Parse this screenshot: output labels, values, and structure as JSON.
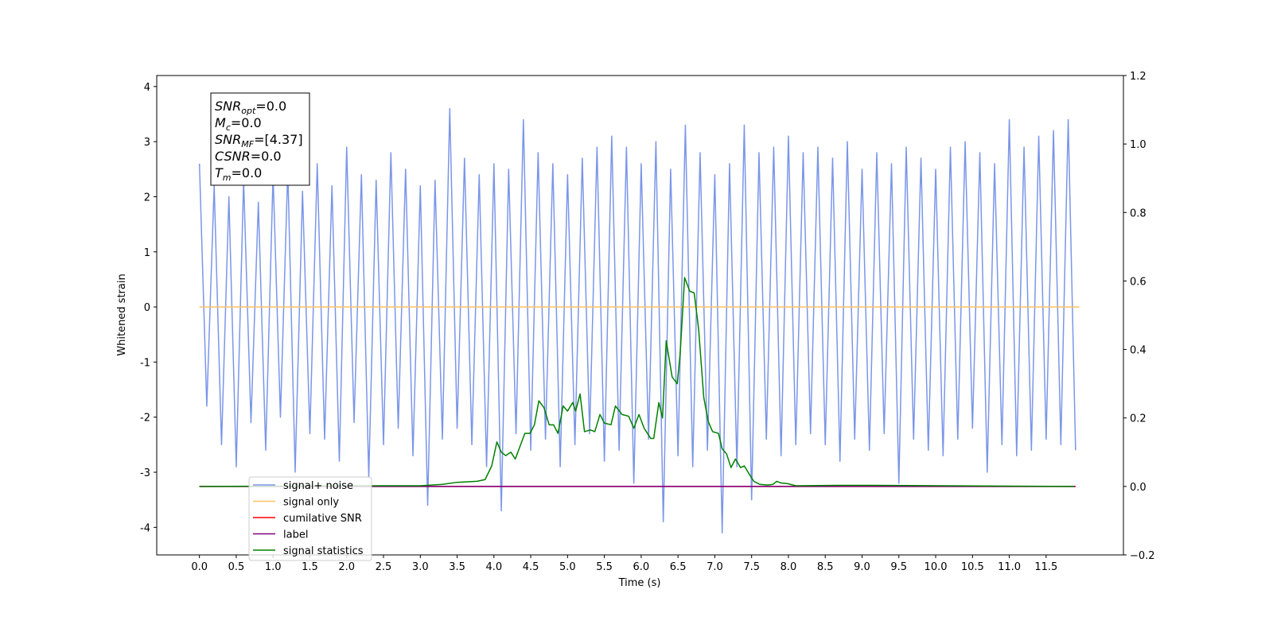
{
  "chart_data": {
    "type": "line",
    "xlabel": "Time (s)",
    "ylabel": "Whitened strain",
    "xlim": [
      -0.58,
      12.55
    ],
    "ylim": [
      -4.5,
      4.2
    ],
    "y2lim": [
      -0.2,
      1.2
    ],
    "xticks": [
      {
        "value": 0,
        "label": "0.0"
      },
      0.5,
      {
        "value": 1,
        "label": "1.0"
      },
      1.5,
      {
        "value": 2,
        "label": "2.0"
      },
      2.5,
      {
        "value": 3,
        "label": "3.0"
      },
      3.5,
      {
        "value": 4,
        "label": "4.0"
      },
      4.5,
      {
        "value": 5,
        "label": "5.0"
      },
      5.5,
      {
        "value": 6,
        "label": "6.0"
      },
      6.5,
      {
        "value": 7,
        "label": "7.0"
      },
      7.5,
      {
        "value": 8,
        "label": "8.0"
      },
      8.5,
      {
        "value": 9,
        "label": "9.0"
      },
      9.5,
      {
        "value": 10,
        "label": "10.0"
      },
      10.5,
      {
        "value": 11,
        "label": "11.0"
      },
      11.5
    ],
    "yticks": [
      -4,
      -3,
      -2,
      -1,
      0,
      1,
      2,
      3,
      4
    ],
    "y2ticks": [
      {
        "value": -0.2,
        "label": "−0.2"
      },
      {
        "value": 0,
        "label": "0.0"
      },
      0.2,
      0.4,
      0.6,
      0.8,
      {
        "value": 1,
        "label": "1.0"
      },
      1.2
    ],
    "legend_loc": "lower left",
    "annotations": [
      {
        "name": "SNR",
        "sub": "opt",
        "text": "=0.0"
      },
      {
        "name": "M",
        "sub": "c",
        "text": "=0.0"
      },
      {
        "name": "SNR",
        "sub": "MF",
        "text": "=[4.37]"
      },
      {
        "name": "CSNR",
        "sub": null,
        "text": "=0.0"
      },
      {
        "name": "T",
        "sub": "m",
        "text": "=0.0"
      }
    ],
    "series": [
      {
        "name": "signal+ noise",
        "color": "#7b96e8",
        "x": [
          0,
          0.1,
          0.2,
          0.3,
          0.4,
          0.5,
          0.6,
          0.7,
          0.8,
          0.9,
          1,
          1.1,
          1.2,
          1.3,
          1.4,
          1.5,
          1.6,
          1.7,
          1.8,
          1.9,
          2,
          2.1,
          2.2,
          2.3,
          2.4,
          2.5,
          2.6,
          2.7,
          2.8,
          2.9,
          3,
          3.1,
          3.2,
          3.3,
          3.4,
          3.5,
          3.6,
          3.7,
          3.8,
          3.9,
          4,
          4.1,
          4.2,
          4.3,
          4.4,
          4.5,
          4.6,
          4.7,
          4.8,
          4.9,
          5,
          5.1,
          5.2,
          5.3,
          5.4,
          5.5,
          5.6,
          5.7,
          5.8,
          5.9,
          6,
          6.1,
          6.2,
          6.3,
          6.4,
          6.5,
          6.6,
          6.7,
          6.8,
          6.9,
          7,
          7.1,
          7.2,
          7.3,
          7.4,
          7.5,
          7.6,
          7.7,
          7.8,
          7.9,
          8,
          8.1,
          8.2,
          8.3,
          8.4,
          8.5,
          8.6,
          8.7,
          8.8,
          8.9,
          9,
          9.1,
          9.2,
          9.3,
          9.4,
          9.5,
          9.6,
          9.7,
          9.8,
          9.9,
          10,
          10.1,
          10.2,
          10.3,
          10.4,
          10.5,
          10.6,
          10.7,
          10.8,
          10.9,
          11,
          11.1,
          11.2,
          11.3,
          11.4,
          11.5,
          11.6,
          11.7,
          11.8,
          11.9
        ],
        "values": [
          2.6,
          -1.8,
          2.2,
          -2.5,
          2.0,
          -2.9,
          2.3,
          -2.1,
          1.9,
          -2.6,
          2.4,
          -2.0,
          2.5,
          -3.0,
          2.1,
          -2.3,
          2.6,
          -2.4,
          2.2,
          -2.8,
          2.9,
          -2.1,
          2.4,
          -3.1,
          2.3,
          -2.5,
          2.8,
          -2.2,
          2.5,
          -2.7,
          2.2,
          -3.6,
          2.3,
          -2.4,
          3.6,
          -2.2,
          2.7,
          -2.5,
          2.4,
          -2.9,
          2.6,
          -3.7,
          2.5,
          -2.3,
          3.4,
          -2.6,
          2.8,
          -2.4,
          2.6,
          -2.9,
          2.4,
          -2.5,
          2.7,
          -2.3,
          2.9,
          -2.8,
          3.1,
          -2.6,
          2.9,
          -3.2,
          2.6,
          -2.4,
          3.0,
          -3.9,
          2.5,
          -2.7,
          3.3,
          -2.9,
          2.8,
          -2.6,
          2.4,
          -4.1,
          2.6,
          -2.9,
          3.3,
          -3.5,
          2.8,
          -2.4,
          2.9,
          -2.7,
          3.1,
          -2.5,
          2.8,
          -2.3,
          2.9,
          -2.5,
          2.7,
          -2.8,
          3.0,
          -2.4,
          2.5,
          -2.6,
          2.8,
          -2.3,
          2.6,
          -3.2,
          2.9,
          -2.4,
          2.7,
          -2.6,
          2.5,
          -2.7,
          2.9,
          -2.4,
          3.0,
          -2.2,
          2.8,
          -3.0,
          2.6,
          -2.5,
          3.4,
          -2.7,
          2.9,
          -2.6,
          3.1,
          -2.4,
          3.2,
          -2.5,
          3.4,
          -2.6
        ]
      },
      {
        "name": "signal only",
        "color": "#ffbf66",
        "x": [
          0,
          11.95
        ],
        "values": [
          0,
          0
        ]
      },
      {
        "name": "cumilative SNR",
        "color": "#ff0000",
        "axis": "y2",
        "x": [
          0,
          11.9
        ],
        "values": [
          0,
          0
        ]
      },
      {
        "name": "label",
        "color": "#800080",
        "axis": "y2",
        "x": [
          0,
          11.9
        ],
        "values": [
          0,
          0
        ]
      },
      {
        "name": "signal statistics",
        "color": "#008000",
        "axis": "y2",
        "x": [
          0,
          2.5,
          3.0,
          3.3,
          3.5,
          3.77,
          3.88,
          3.97,
          4.04,
          4.1,
          4.16,
          4.23,
          4.29,
          4.42,
          4.49,
          4.55,
          4.61,
          4.68,
          4.75,
          4.81,
          4.87,
          4.94,
          5.0,
          5.07,
          5.11,
          5.17,
          5.23,
          5.31,
          5.37,
          5.44,
          5.5,
          5.59,
          5.65,
          5.74,
          5.83,
          5.9,
          5.97,
          6.04,
          6.13,
          6.17,
          6.24,
          6.29,
          6.34,
          6.42,
          6.49,
          6.53,
          6.59,
          6.66,
          6.72,
          6.78,
          6.85,
          6.91,
          6.97,
          7.05,
          7.1,
          7.16,
          7.22,
          7.28,
          7.35,
          7.4,
          7.47,
          7.53,
          7.61,
          7.72,
          7.79,
          7.84,
          7.9,
          7.99,
          8.1,
          8.64,
          9.18,
          11.88
        ],
        "values": [
          0,
          0.002,
          0.002,
          0.006,
          0.012,
          0.015,
          0.02,
          0.06,
          0.13,
          0.1,
          0.09,
          0.1,
          0.08,
          0.155,
          0.155,
          0.18,
          0.25,
          0.23,
          0.18,
          0.18,
          0.155,
          0.235,
          0.22,
          0.245,
          0.22,
          0.27,
          0.16,
          0.165,
          0.16,
          0.21,
          0.185,
          0.18,
          0.235,
          0.21,
          0.205,
          0.17,
          0.21,
          0.17,
          0.14,
          0.14,
          0.245,
          0.2,
          0.425,
          0.32,
          0.3,
          0.39,
          0.61,
          0.57,
          0.565,
          0.46,
          0.26,
          0.19,
          0.16,
          0.155,
          0.11,
          0.095,
          0.055,
          0.08,
          0.055,
          0.06,
          0.035,
          0.015,
          0.006,
          0.004,
          0.006,
          0.015,
          0.01,
          0.008,
          0.002,
          0.003,
          0.003,
          0
        ]
      }
    ]
  }
}
